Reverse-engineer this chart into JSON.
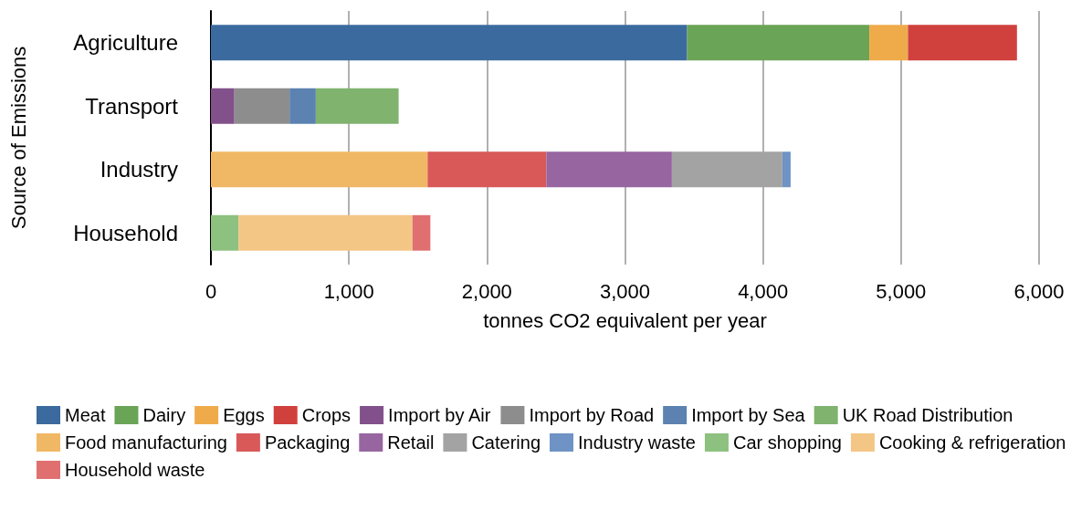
{
  "chart_data": {
    "type": "bar",
    "orientation": "horizontal",
    "stacked": true,
    "xlabel": "tonnes CO2 equivalent per year",
    "ylabel": "Source of Emissions",
    "categories": [
      "Agriculture",
      "Transport",
      "Industry",
      "Household"
    ],
    "xlim": [
      0,
      6000
    ],
    "xticks": [
      0,
      {
        "value": 1000,
        "label": "1,000"
      },
      {
        "value": 2000,
        "label": "2,000"
      },
      {
        "value": 3000,
        "label": "3,000"
      },
      {
        "value": 4000,
        "label": "4,000"
      },
      {
        "value": 5000,
        "label": "5,000"
      },
      {
        "value": 6000,
        "label": "6,000"
      }
    ],
    "grid": "x",
    "legend": "bottom",
    "series": [
      {
        "name": "Meat",
        "color": "#3b6a9e",
        "values": [
          3450,
          null,
          null,
          null
        ]
      },
      {
        "name": "Dairy",
        "color": "#6aa456",
        "values": [
          1320,
          null,
          null,
          null
        ]
      },
      {
        "name": "Eggs",
        "color": "#efab4a",
        "values": [
          280,
          null,
          null,
          null
        ]
      },
      {
        "name": "Crops",
        "color": "#d0413e",
        "values": [
          790,
          null,
          null,
          null
        ]
      },
      {
        "name": "Import by Air",
        "color": "#82508a",
        "values": [
          null,
          170,
          null,
          null
        ]
      },
      {
        "name": "Import by Road",
        "color": "#8d8d8d",
        "values": [
          null,
          400,
          null,
          null
        ]
      },
      {
        "name": "Import by Sea",
        "color": "#5b82b0",
        "values": [
          null,
          190,
          null,
          null
        ]
      },
      {
        "name": "UK Road Distribution",
        "color": "#7fb36e",
        "values": [
          null,
          600,
          null,
          null
        ]
      },
      {
        "name": "Food manufacturing",
        "color": "#f0b865",
        "values": [
          null,
          null,
          1570,
          null
        ]
      },
      {
        "name": "Packaging",
        "color": "#d95858",
        "values": [
          null,
          null,
          860,
          null
        ]
      },
      {
        "name": "Retail",
        "color": "#9766a0",
        "values": [
          null,
          null,
          910,
          null
        ]
      },
      {
        "name": "Catering",
        "color": "#a3a3a3",
        "values": [
          null,
          null,
          800,
          null
        ]
      },
      {
        "name": "Industry waste",
        "color": "#6e93c4",
        "values": [
          null,
          null,
          60,
          null
        ]
      },
      {
        "name": "Car shopping",
        "color": "#8dc17f",
        "values": [
          null,
          null,
          null,
          200
        ]
      },
      {
        "name": "Cooking & refrigeration",
        "color": "#f4c685",
        "values": [
          null,
          null,
          null,
          1260
        ]
      },
      {
        "name": "Household waste",
        "color": "#e07070",
        "values": [
          null,
          null,
          null,
          130
        ]
      }
    ]
  }
}
